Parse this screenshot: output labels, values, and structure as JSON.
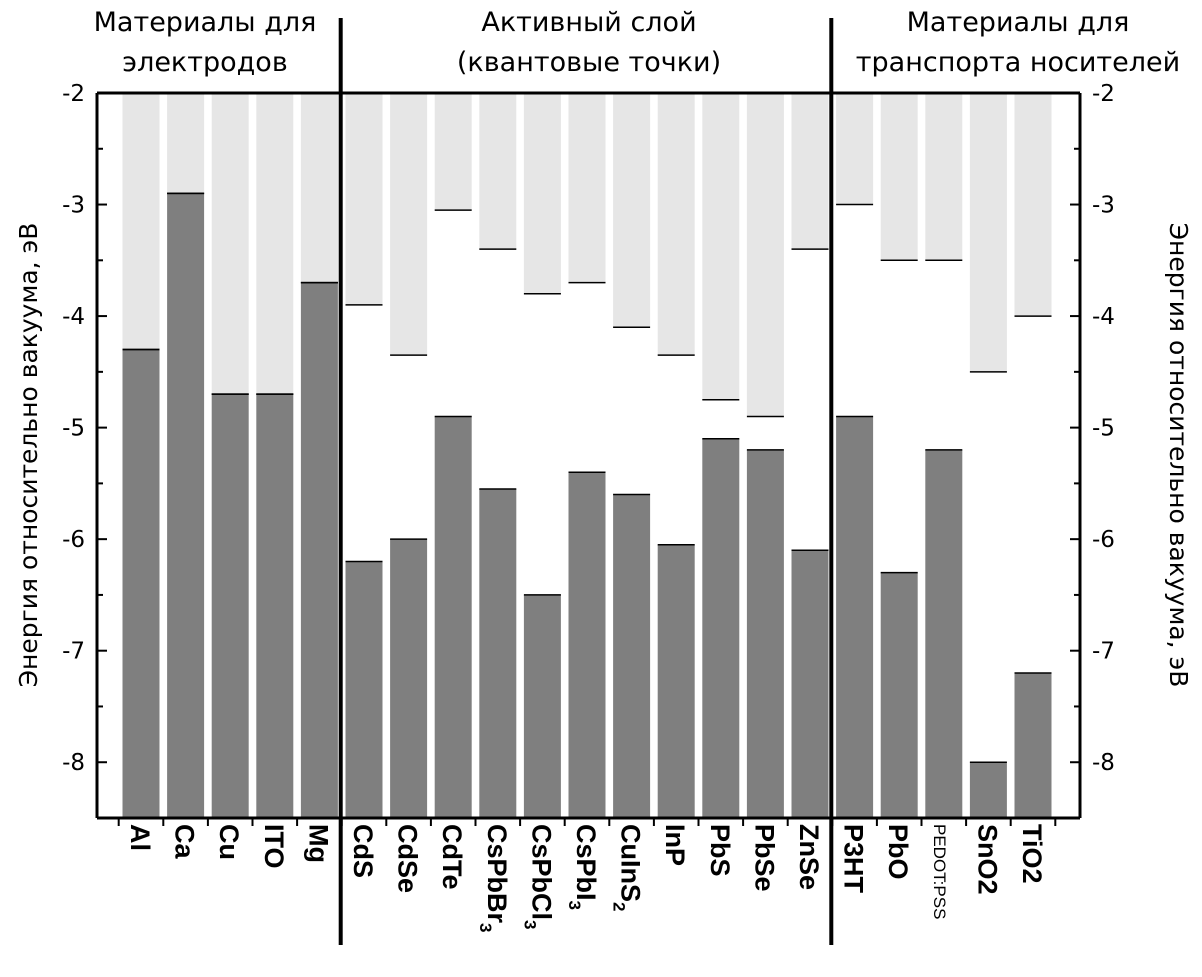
{
  "chart_data": {
    "type": "bar",
    "ylabel": "Энергия относительно вакуума, эВ",
    "ylabel_right": "Энергия относительно вакуума, эВ",
    "ylim": [
      -8.5,
      -2
    ],
    "yticks": [
      "-2",
      "-3",
      "-4",
      "-5",
      "-6",
      "-7",
      "-8"
    ],
    "grid": false,
    "groups": [
      {
        "title_lines": [
          "Материалы для",
          "электродов"
        ],
        "categories": [
          "Al",
          "Ca",
          "Cu",
          "ITO",
          "Mg"
        ]
      },
      {
        "title_lines": [
          "Активный слой",
          "(квантовые точки)"
        ],
        "categories": [
          "CdS",
          "CdSe",
          "CdTe",
          "CsPbBr3",
          "CsPbCl3",
          "CsPbI3",
          "CuInS2",
          "InP",
          "PbS",
          "PbSe",
          "ZnSe"
        ]
      },
      {
        "title_lines": [
          "Материалы для",
          "транспорта носителей"
        ],
        "categories": [
          "P3HT",
          "PbO",
          "PEDOT:PSS",
          "SnO2",
          "TiO2"
        ]
      }
    ],
    "categories": [
      "Al",
      "Ca",
      "Cu",
      "ITO",
      "Mg",
      "CdS",
      "CdSe",
      "CdTe",
      "CsPbBr3",
      "CsPbCl3",
      "CsPbI3",
      "CuInS2",
      "InP",
      "PbS",
      "PbSe",
      "ZnSe",
      "P3HT",
      "PbO",
      "PEDOT:PSS",
      "SnO2",
      "TiO2"
    ],
    "series": [
      {
        "values": [
          -4.3,
          -2.9,
          -4.7,
          -4.7,
          -3.7,
          -3.9,
          -4.35,
          -3.05,
          -3.4,
          -3.8,
          -3.7,
          -4.1,
          -4.35,
          -4.75,
          -4.9,
          -3.4,
          -3.0,
          -3.5,
          -3.5,
          -4.5,
          -4.0
        ],
        "color": "#e6e6e6"
      },
      {
        "values": [
          -4.3,
          -2.9,
          -4.7,
          -4.7,
          -3.7,
          -6.2,
          -6.0,
          -4.9,
          -5.55,
          -6.5,
          -5.4,
          -5.6,
          -6.05,
          -5.1,
          -5.2,
          -6.1,
          -4.9,
          -6.3,
          -5.2,
          -8.0,
          -7.2
        ],
        "color": "#7f7f7f"
      }
    ]
  }
}
